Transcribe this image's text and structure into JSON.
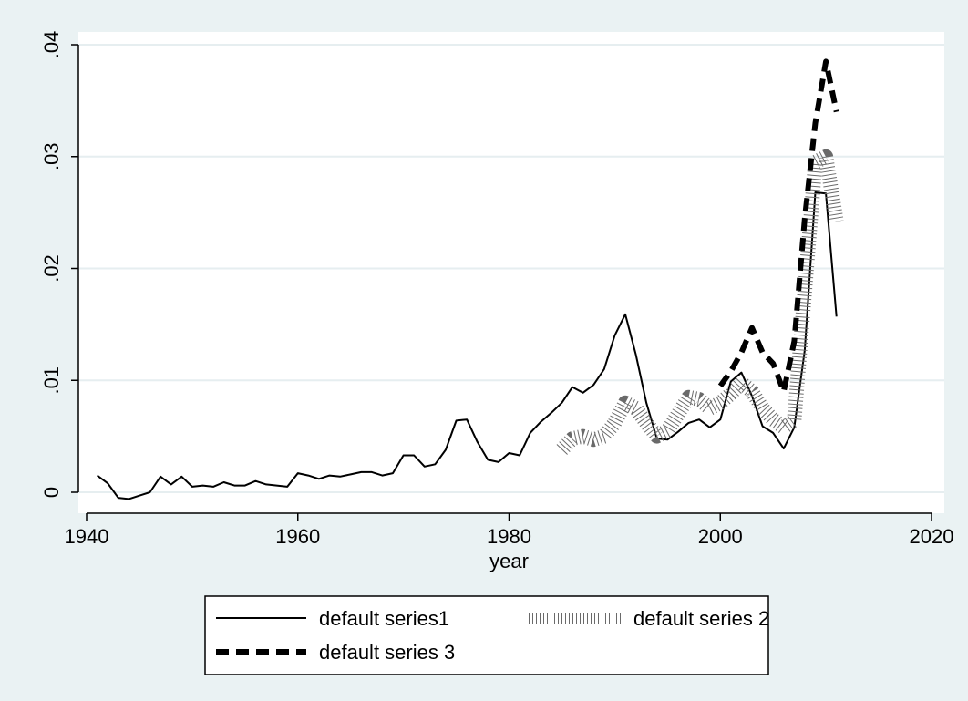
{
  "chart_data": {
    "type": "line",
    "title": "",
    "xlabel": "year",
    "ylabel": "",
    "xlim": [
      1940,
      2020
    ],
    "ylim": [
      0,
      0.04
    ],
    "x_ticks": [
      1940,
      1960,
      1980,
      2000,
      2020
    ],
    "x_tick_labels": [
      "1940",
      "1960",
      "1980",
      "2000",
      "2020"
    ],
    "y_ticks": [
      0,
      0.01,
      0.02,
      0.03,
      0.04
    ],
    "y_tick_labels": [
      "0",
      ".01",
      ".02",
      ".03",
      ".04"
    ],
    "grid": true,
    "legend_position": "bottom",
    "colors": {
      "background": "#eaf2f3",
      "plot_background": "#ffffff",
      "grid": "#e6eef0",
      "line": "#000000"
    },
    "series": [
      {
        "name": "default series1",
        "style": "solid",
        "x": [
          1941,
          1942,
          1943,
          1944,
          1945,
          1946,
          1947,
          1948,
          1949,
          1950,
          1951,
          1952,
          1953,
          1954,
          1955,
          1956,
          1957,
          1958,
          1959,
          1960,
          1961,
          1962,
          1963,
          1964,
          1965,
          1966,
          1967,
          1968,
          1969,
          1970,
          1971,
          1972,
          1973,
          1974,
          1975,
          1976,
          1977,
          1978,
          1979,
          1980,
          1981,
          1982,
          1983,
          1984,
          1985,
          1986,
          1987,
          1988,
          1989,
          1990,
          1991,
          1992,
          1993,
          1994,
          1995,
          1996,
          1997,
          1998,
          1999,
          2000,
          2001,
          2002,
          2003,
          2004,
          2005,
          2006,
          2007,
          2008,
          2009,
          2010,
          2011
        ],
        "y": [
          0.0015,
          0.0008,
          -0.0005,
          -0.0006,
          -0.0003,
          0.0,
          0.0014,
          0.0007,
          0.0014,
          0.0005,
          0.0006,
          0.0005,
          0.0009,
          0.0006,
          0.0006,
          0.001,
          0.0007,
          0.0006,
          0.0005,
          0.0017,
          0.0015,
          0.0012,
          0.0015,
          0.0014,
          0.0016,
          0.0018,
          0.0018,
          0.0015,
          0.0017,
          0.0033,
          0.0033,
          0.0023,
          0.0025,
          0.0038,
          0.0064,
          0.0065,
          0.0045,
          0.0029,
          0.0027,
          0.0035,
          0.0033,
          0.0053,
          0.0063,
          0.0071,
          0.008,
          0.0094,
          0.0089,
          0.0096,
          0.011,
          0.014,
          0.0159,
          0.0123,
          0.008,
          0.0048,
          0.0047,
          0.0054,
          0.0062,
          0.0065,
          0.0058,
          0.0065,
          0.0099,
          0.0107,
          0.0086,
          0.0059,
          0.0053,
          0.0039,
          0.0058,
          0.0127,
          0.0268,
          0.0267,
          0.0157
        ]
      },
      {
        "name": "default series 2",
        "style": "shaded",
        "x": [
          1985,
          1986,
          1987,
          1988,
          1989,
          1990,
          1991,
          1992,
          1993,
          1994,
          1995,
          1996,
          1997,
          1998,
          1999,
          2000,
          2001,
          2002,
          2003,
          2004,
          2005,
          2006,
          2007,
          2008,
          2009,
          2010,
          2011
        ],
        "y": [
          0.0038,
          0.0048,
          0.005,
          0.0047,
          0.005,
          0.0062,
          0.008,
          0.0075,
          0.0062,
          0.005,
          0.0055,
          0.007,
          0.0085,
          0.0083,
          0.0075,
          0.008,
          0.0088,
          0.0098,
          0.009,
          0.0075,
          0.0065,
          0.0058,
          0.0065,
          0.018,
          0.0295,
          0.03,
          0.0242
        ]
      },
      {
        "name": "default series 3",
        "style": "dashed",
        "x": [
          2000,
          2001,
          2002,
          2003,
          2004,
          2005,
          2006,
          2007,
          2008,
          2009,
          2010,
          2011
        ],
        "y": [
          0.0095,
          0.0108,
          0.0125,
          0.0147,
          0.0125,
          0.0115,
          0.009,
          0.0135,
          0.0245,
          0.033,
          0.0385,
          0.034
        ]
      }
    ],
    "legend": {
      "entries": [
        "default series1",
        "default series 2",
        "default series 3"
      ]
    }
  }
}
